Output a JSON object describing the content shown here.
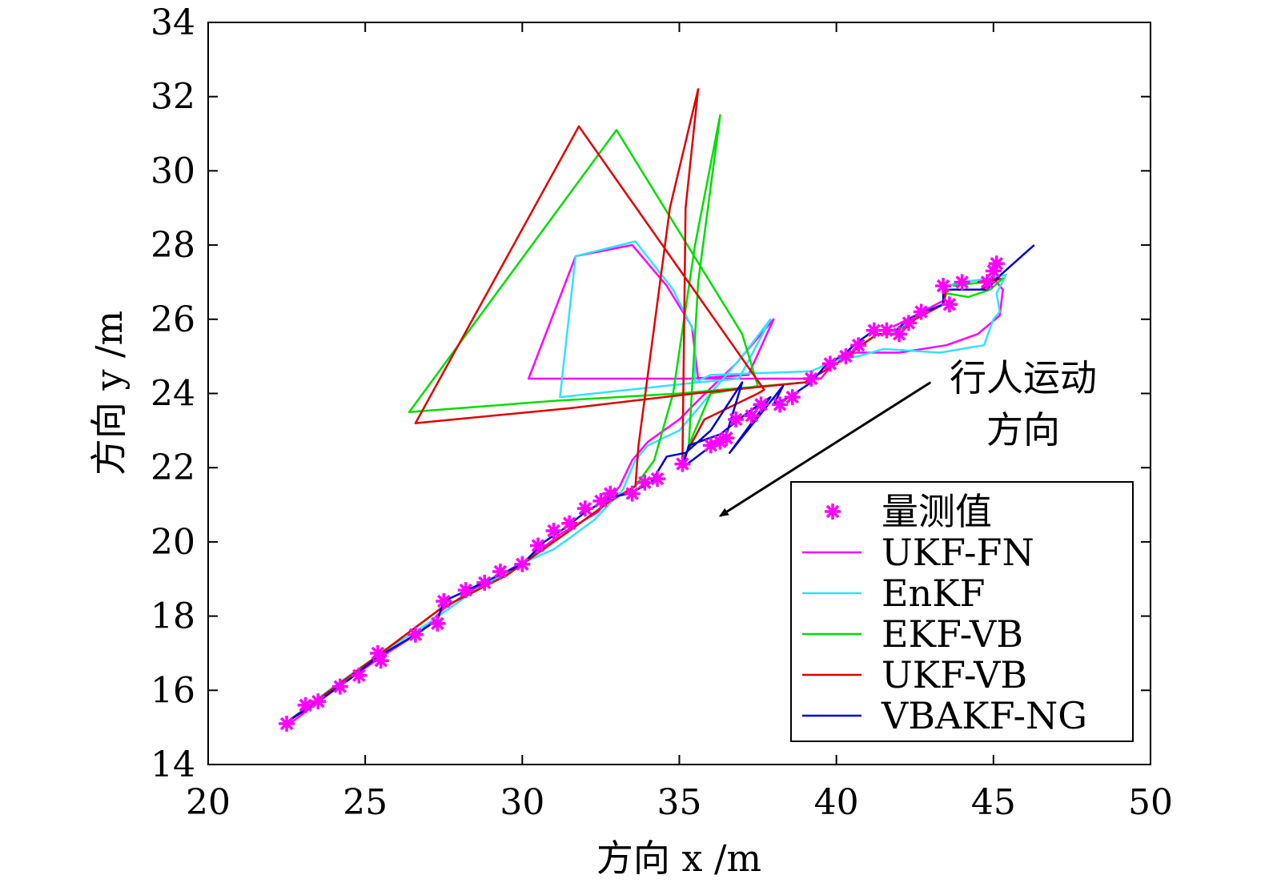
{
  "chart_data": {
    "type": "line",
    "title": "",
    "xlabel": "方向 x /m",
    "ylabel": "方向 y /m",
    "xlim": [
      20,
      50
    ],
    "ylim": [
      14,
      34
    ],
    "xticks": [
      20,
      25,
      30,
      35,
      40,
      45,
      50
    ],
    "yticks": [
      14,
      16,
      18,
      20,
      22,
      24,
      26,
      28,
      30,
      32,
      34
    ],
    "grid": false,
    "legend_position": "bottom-right",
    "annotation": {
      "lines": [
        "行人运动",
        "方向"
      ],
      "arrow_from": [
        43.0,
        24.3
      ],
      "arrow_to": [
        36.3,
        20.7
      ]
    },
    "measurements": {
      "name": "量测值",
      "color": "#ff00ff",
      "marker": "asterisk",
      "points": [
        [
          22.5,
          15.1
        ],
        [
          23.1,
          15.6
        ],
        [
          23.5,
          15.7
        ],
        [
          24.2,
          16.1
        ],
        [
          24.8,
          16.4
        ],
        [
          25.4,
          17.0
        ],
        [
          25.5,
          16.8
        ],
        [
          26.6,
          17.5
        ],
        [
          27.3,
          17.8
        ],
        [
          27.5,
          18.4
        ],
        [
          28.2,
          18.7
        ],
        [
          28.8,
          18.9
        ],
        [
          29.3,
          19.2
        ],
        [
          30.0,
          19.4
        ],
        [
          30.5,
          19.9
        ],
        [
          31.0,
          20.3
        ],
        [
          31.5,
          20.5
        ],
        [
          32.0,
          20.9
        ],
        [
          32.5,
          21.1
        ],
        [
          32.8,
          21.3
        ],
        [
          33.5,
          21.3
        ],
        [
          33.9,
          21.6
        ],
        [
          34.3,
          21.7
        ],
        [
          35.1,
          22.1
        ],
        [
          36.0,
          22.6
        ],
        [
          36.3,
          22.7
        ],
        [
          36.5,
          22.8
        ],
        [
          36.8,
          23.3
        ],
        [
          37.3,
          23.4
        ],
        [
          37.6,
          23.7
        ],
        [
          38.2,
          23.7
        ],
        [
          38.6,
          23.9
        ],
        [
          39.2,
          24.4
        ],
        [
          39.8,
          24.8
        ],
        [
          40.3,
          25.0
        ],
        [
          40.7,
          25.3
        ],
        [
          41.2,
          25.7
        ],
        [
          41.6,
          25.7
        ],
        [
          42.0,
          25.6
        ],
        [
          42.3,
          25.9
        ],
        [
          42.7,
          26.2
        ],
        [
          43.4,
          26.9
        ],
        [
          43.6,
          26.4
        ],
        [
          44.0,
          27.0
        ],
        [
          44.8,
          27.0
        ],
        [
          45.0,
          27.3
        ],
        [
          45.1,
          27.5
        ]
      ]
    },
    "series": [
      {
        "name": "UKF-FN",
        "color": "#ff00ff",
        "points": [
          [
            22.6,
            15.1
          ],
          [
            24.0,
            16.0
          ],
          [
            25.5,
            16.9
          ],
          [
            26.8,
            17.6
          ],
          [
            27.5,
            18.2
          ],
          [
            28.4,
            18.7
          ],
          [
            29.5,
            19.2
          ],
          [
            30.3,
            19.6
          ],
          [
            31.2,
            20.2
          ],
          [
            32.4,
            20.8
          ],
          [
            33.1,
            21.5
          ],
          [
            33.5,
            22.2
          ],
          [
            34.0,
            22.7
          ],
          [
            35.0,
            23.3
          ],
          [
            35.7,
            23.9
          ],
          [
            36.8,
            24.8
          ],
          [
            38.0,
            26.0
          ],
          [
            37.2,
            24.5
          ],
          [
            35.4,
            24.4
          ],
          [
            30.2,
            24.4
          ],
          [
            31.7,
            27.7
          ],
          [
            33.5,
            28.0
          ],
          [
            34.6,
            26.9
          ],
          [
            35.4,
            25.8
          ],
          [
            35.6,
            24.4
          ],
          [
            36.5,
            24.4
          ],
          [
            38.5,
            24.4
          ],
          [
            39.5,
            24.4
          ],
          [
            40.0,
            24.9
          ],
          [
            40.6,
            25.1
          ],
          [
            42.0,
            25.1
          ],
          [
            43.5,
            25.3
          ],
          [
            44.5,
            25.6
          ],
          [
            45.2,
            26.1
          ],
          [
            45.3,
            26.8
          ],
          [
            45.0,
            27.1
          ],
          [
            44.0,
            27.0
          ],
          [
            43.5,
            26.9
          ],
          [
            43.4,
            26.5
          ],
          [
            42.5,
            26.1
          ],
          [
            41.8,
            25.8
          ]
        ]
      },
      {
        "name": "EnKF",
        "color": "#33e0ff",
        "points": [
          [
            22.6,
            15.2
          ],
          [
            24.0,
            16.1
          ],
          [
            25.5,
            17.0
          ],
          [
            27.0,
            17.8
          ],
          [
            28.5,
            18.7
          ],
          [
            30.2,
            19.5
          ],
          [
            31.0,
            19.8
          ],
          [
            31.5,
            20.1
          ],
          [
            32.3,
            20.6
          ],
          [
            33.2,
            21.4
          ],
          [
            33.6,
            22.2
          ],
          [
            34.0,
            22.6
          ],
          [
            35.0,
            23.0
          ],
          [
            36.0,
            24.0
          ],
          [
            37.0,
            25.0
          ],
          [
            37.9,
            26.0
          ],
          [
            36.9,
            24.4
          ],
          [
            35.6,
            24.3
          ],
          [
            31.2,
            23.9
          ],
          [
            31.7,
            27.7
          ],
          [
            33.6,
            28.1
          ],
          [
            34.8,
            26.8
          ],
          [
            35.5,
            25.6
          ],
          [
            35.5,
            24.3
          ],
          [
            36.0,
            24.5
          ],
          [
            39.2,
            24.6
          ],
          [
            40.0,
            24.9
          ],
          [
            40.7,
            25.0
          ],
          [
            41.5,
            25.2
          ],
          [
            43.3,
            25.1
          ],
          [
            44.7,
            25.3
          ],
          [
            45.0,
            26.0
          ],
          [
            45.2,
            26.2
          ],
          [
            45.1,
            26.7
          ],
          [
            45.4,
            27.2
          ],
          [
            44.9,
            27.1
          ],
          [
            44.0,
            27.0
          ],
          [
            43.5,
            26.9
          ]
        ]
      },
      {
        "name": "EKF-VB",
        "color": "#00dd00",
        "points": [
          [
            22.6,
            15.2
          ],
          [
            25.5,
            17.0
          ],
          [
            27.4,
            18.2
          ],
          [
            29.5,
            19.1
          ],
          [
            31.5,
            20.3
          ],
          [
            32.8,
            21.1
          ],
          [
            33.6,
            21.5
          ],
          [
            34.2,
            22.2
          ],
          [
            34.8,
            24.0
          ],
          [
            35.5,
            28.0
          ],
          [
            36.3,
            31.5
          ],
          [
            35.6,
            27.0
          ],
          [
            35.3,
            22.6
          ],
          [
            36.0,
            24.0
          ],
          [
            37.5,
            24.2
          ],
          [
            37.0,
            25.6
          ],
          [
            33.0,
            31.1
          ],
          [
            26.4,
            23.5
          ],
          [
            31.0,
            23.8
          ],
          [
            35.0,
            24.0
          ],
          [
            39.0,
            24.3
          ],
          [
            40.0,
            24.8
          ],
          [
            40.8,
            25.3
          ],
          [
            41.3,
            25.6
          ],
          [
            41.8,
            25.6
          ],
          [
            42.5,
            26.0
          ],
          [
            43.4,
            26.4
          ],
          [
            43.5,
            26.7
          ],
          [
            44.2,
            26.6
          ],
          [
            44.9,
            26.8
          ],
          [
            45.3,
            27.1
          ],
          [
            44.7,
            27.0
          ],
          [
            43.7,
            26.9
          ]
        ]
      },
      {
        "name": "UKF-VB",
        "color": "#e00000",
        "points": [
          [
            22.6,
            15.2
          ],
          [
            25.5,
            17.0
          ],
          [
            27.4,
            18.2
          ],
          [
            29.5,
            19.1
          ],
          [
            31.5,
            20.3
          ],
          [
            32.8,
            21.1
          ],
          [
            33.6,
            21.5
          ],
          [
            33.7,
            22.6
          ],
          [
            34.7,
            29.0
          ],
          [
            35.6,
            32.2
          ],
          [
            35.2,
            29.0
          ],
          [
            35.1,
            22.2
          ],
          [
            35.8,
            23.3
          ],
          [
            37.5,
            24.0
          ],
          [
            37.7,
            24.1
          ],
          [
            31.8,
            31.2
          ],
          [
            26.6,
            23.2
          ],
          [
            31.5,
            23.6
          ],
          [
            35.5,
            24.0
          ],
          [
            39.0,
            24.3
          ],
          [
            40.0,
            24.8
          ],
          [
            40.8,
            25.3
          ],
          [
            41.3,
            25.6
          ],
          [
            42.0,
            25.6
          ],
          [
            42.5,
            26.0
          ],
          [
            43.4,
            26.4
          ],
          [
            43.5,
            26.8
          ],
          [
            44.6,
            26.8
          ],
          [
            45.2,
            27.1
          ],
          [
            44.5,
            27.0
          ]
        ]
      },
      {
        "name": "VBAKF-NG",
        "color": "#0000cc",
        "points": [
          [
            22.6,
            15.2
          ],
          [
            23.5,
            15.7
          ],
          [
            24.5,
            16.3
          ],
          [
            25.4,
            16.9
          ],
          [
            26.6,
            17.5
          ],
          [
            27.3,
            17.9
          ],
          [
            27.5,
            18.4
          ],
          [
            28.5,
            18.8
          ],
          [
            29.5,
            19.2
          ],
          [
            30.0,
            19.4
          ],
          [
            30.7,
            20.0
          ],
          [
            31.4,
            20.4
          ],
          [
            32.0,
            20.8
          ],
          [
            32.8,
            21.2
          ],
          [
            33.4,
            21.3
          ],
          [
            34.1,
            21.6
          ],
          [
            34.6,
            22.3
          ],
          [
            35.2,
            22.4
          ],
          [
            36.0,
            23.0
          ],
          [
            37.0,
            24.3
          ],
          [
            36.5,
            22.9
          ],
          [
            35.1,
            22.0
          ],
          [
            35.3,
            22.6
          ],
          [
            36.3,
            22.9
          ],
          [
            37.2,
            23.5
          ],
          [
            37.9,
            23.9
          ],
          [
            36.6,
            22.4
          ],
          [
            38.3,
            24.2
          ],
          [
            38.0,
            23.7
          ],
          [
            38.5,
            23.9
          ],
          [
            39.2,
            24.3
          ],
          [
            39.6,
            24.7
          ],
          [
            40.3,
            25.1
          ],
          [
            40.7,
            25.4
          ],
          [
            41.2,
            25.7
          ],
          [
            41.9,
            25.7
          ],
          [
            42.3,
            26.0
          ],
          [
            42.8,
            26.2
          ],
          [
            43.4,
            26.4
          ],
          [
            43.4,
            26.8
          ],
          [
            44.8,
            26.8
          ],
          [
            45.1,
            27.1
          ],
          [
            46.3,
            28.0
          ]
        ]
      }
    ]
  }
}
